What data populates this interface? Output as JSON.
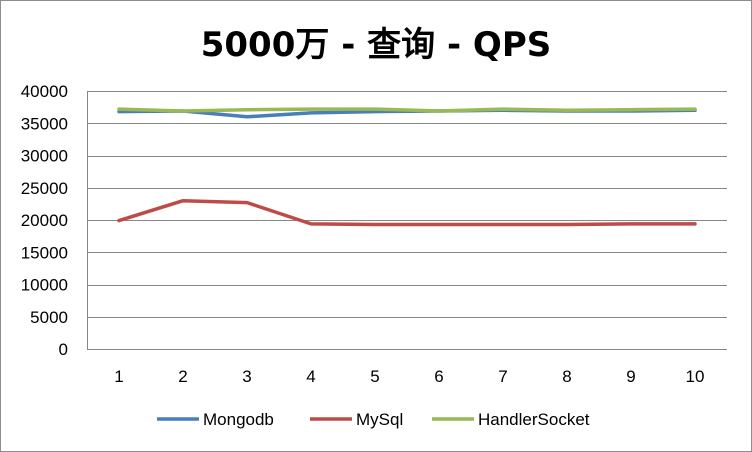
{
  "chart_data": {
    "type": "line",
    "title": "5000万 - 查询 - QPS",
    "xlabel": "",
    "ylabel": "",
    "categories": [
      "1",
      "2",
      "3",
      "4",
      "5",
      "6",
      "7",
      "8",
      "9",
      "10"
    ],
    "ylim": [
      0,
      40000
    ],
    "yticks": [
      0,
      5000,
      10000,
      15000,
      20000,
      25000,
      30000,
      35000,
      40000
    ],
    "grid": true,
    "legend_position": "bottom",
    "series": [
      {
        "name": "Mongodb",
        "color": "#4a7ebb",
        "values": [
          36800,
          36900,
          36000,
          36600,
          36800,
          36900,
          37000,
          36900,
          36900,
          37000
        ]
      },
      {
        "name": "MySql",
        "color": "#be4b48",
        "values": [
          19900,
          23000,
          22700,
          19400,
          19300,
          19300,
          19300,
          19300,
          19400,
          19400
        ]
      },
      {
        "name": "HandlerSocket",
        "color": "#98b954",
        "values": [
          37200,
          36900,
          37100,
          37200,
          37200,
          36900,
          37200,
          37000,
          37100,
          37200
        ]
      }
    ]
  }
}
